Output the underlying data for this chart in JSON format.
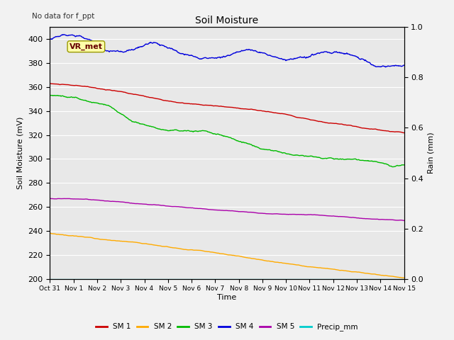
{
  "title": "Soil Moisture",
  "annotation": "No data for f_ppt",
  "vr_met_label": "VR_met",
  "ylabel_left": "Soil Moisture (mV)",
  "ylabel_right": "Rain (mm)",
  "xlabel": "Time",
  "ylim_left": [
    200,
    410
  ],
  "ylim_right": [
    0.0,
    1.0
  ],
  "yticks_left": [
    200,
    220,
    240,
    260,
    280,
    300,
    320,
    340,
    360,
    380,
    400
  ],
  "yticks_right": [
    0.0,
    0.2,
    0.4,
    0.6,
    0.8,
    1.0
  ],
  "background_color": "#e8e8e8",
  "grid_color": "#ffffff",
  "sm1_color": "#cc0000",
  "sm2_color": "#ffaa00",
  "sm3_color": "#00bb00",
  "sm4_color": "#0000dd",
  "sm5_color": "#aa00aa",
  "precip_color": "#00cccc",
  "xtick_labels": [
    "Oct 31",
    "Nov 1",
    "Nov 2",
    "Nov 3",
    "Nov 4",
    "Nov 5",
    "Nov 6",
    "Nov 7",
    "Nov 8",
    "Nov 9",
    "Nov 10",
    "Nov 11",
    "Nov 12",
    "Nov 13",
    "Nov 14",
    "Nov 15"
  ]
}
